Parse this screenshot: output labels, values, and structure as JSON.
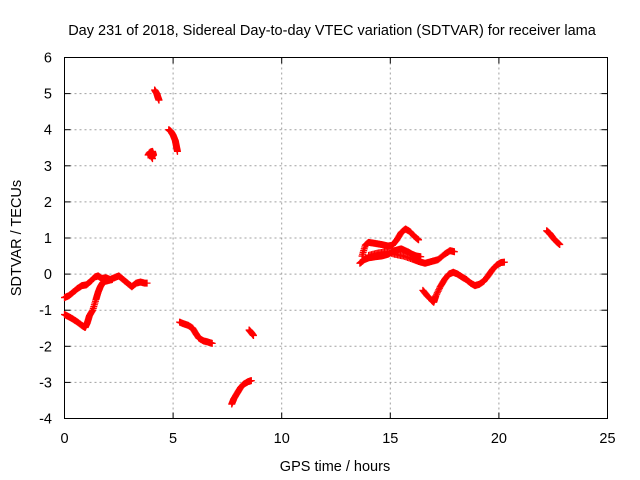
{
  "chart_data": {
    "type": "scatter",
    "title": "Day 231 of 2018, Sidereal Day-to-day VTEC variation (SDTVAR) for receiver lama",
    "xlabel": "GPS time / hours",
    "ylabel": "SDTVAR / TECUs",
    "xlim": [
      0,
      25
    ],
    "ylim": [
      -4,
      6
    ],
    "xticks": [
      "0",
      "5",
      "10",
      "15",
      "20",
      "25"
    ],
    "yticks": [
      "-4",
      "-3",
      "-2",
      "-1",
      "0",
      "1",
      "2",
      "3",
      "4",
      "5",
      "6"
    ],
    "grid": true,
    "marker": "plus",
    "marker_color": "#ff0000",
    "series": [
      {
        "name": "SDTVAR",
        "tracks": [
          [
            [
              0.0,
              -0.65
            ],
            [
              0.2,
              -0.6
            ],
            [
              0.4,
              -0.5
            ],
            [
              0.6,
              -0.4
            ],
            [
              0.8,
              -0.32
            ],
            [
              1.0,
              -0.3
            ],
            [
              1.2,
              -0.2
            ],
            [
              1.4,
              -0.08
            ],
            [
              1.55,
              -0.05
            ],
            [
              1.7,
              -0.12
            ],
            [
              1.9,
              -0.1
            ],
            [
              2.1,
              -0.15
            ],
            [
              2.3,
              -0.1
            ],
            [
              2.5,
              -0.05
            ],
            [
              2.7,
              -0.15
            ],
            [
              2.9,
              -0.25
            ],
            [
              3.1,
              -0.35
            ],
            [
              3.3,
              -0.25
            ],
            [
              3.5,
              -0.22
            ],
            [
              3.7,
              -0.25
            ],
            [
              3.8,
              -0.25
            ]
          ],
          [
            [
              0.0,
              -1.12
            ],
            [
              0.2,
              -1.18
            ],
            [
              0.4,
              -1.25
            ],
            [
              0.6,
              -1.33
            ],
            [
              0.8,
              -1.42
            ],
            [
              0.95,
              -1.48
            ],
            [
              1.05,
              -1.35
            ],
            [
              1.15,
              -1.15
            ],
            [
              1.3,
              -1.0
            ],
            [
              1.45,
              -0.7
            ],
            [
              1.55,
              -0.5
            ],
            [
              1.65,
              -0.35
            ],
            [
              1.75,
              -0.25
            ],
            [
              1.85,
              -0.2
            ],
            [
              2.0,
              -0.18
            ],
            [
              2.2,
              -0.15
            ]
          ],
          [
            [
              3.85,
              3.3
            ],
            [
              3.95,
              3.38
            ],
            [
              4.05,
              3.4
            ],
            [
              4.1,
              3.3
            ],
            [
              4.0,
              3.25
            ],
            [
              3.9,
              3.35
            ],
            [
              4.05,
              3.2
            ]
          ],
          [
            [
              4.15,
              5.1
            ],
            [
              4.25,
              5.0
            ],
            [
              4.3,
              4.9
            ],
            [
              4.35,
              4.82
            ]
          ],
          [
            [
              4.8,
              4.0
            ],
            [
              4.9,
              3.95
            ],
            [
              5.0,
              3.85
            ],
            [
              5.1,
              3.7
            ],
            [
              5.15,
              3.55
            ],
            [
              5.2,
              3.4
            ]
          ],
          [
            [
              5.3,
              -1.33
            ],
            [
              5.5,
              -1.38
            ],
            [
              5.7,
              -1.42
            ],
            [
              5.9,
              -1.5
            ],
            [
              6.05,
              -1.65
            ],
            [
              6.2,
              -1.78
            ],
            [
              6.4,
              -1.85
            ],
            [
              6.6,
              -1.88
            ],
            [
              6.8,
              -1.92
            ]
          ],
          [
            [
              7.7,
              -3.6
            ],
            [
              7.8,
              -3.45
            ],
            [
              7.95,
              -3.3
            ],
            [
              8.1,
              -3.15
            ],
            [
              8.25,
              -3.05
            ],
            [
              8.45,
              -2.98
            ],
            [
              8.6,
              -2.95
            ]
          ],
          [
            [
              8.5,
              -1.55
            ],
            [
              8.6,
              -1.62
            ],
            [
              8.7,
              -1.7
            ]
          ],
          [
            [
              13.6,
              0.3
            ],
            [
              13.8,
              0.4
            ],
            [
              14.0,
              0.45
            ],
            [
              14.3,
              0.48
            ],
            [
              14.6,
              0.5
            ],
            [
              14.9,
              0.55
            ],
            [
              15.2,
              0.65
            ],
            [
              15.5,
              0.7
            ],
            [
              15.8,
              0.62
            ],
            [
              16.0,
              0.55
            ],
            [
              16.2,
              0.5
            ],
            [
              16.4,
              0.48
            ]
          ],
          [
            [
              13.7,
              0.5
            ],
            [
              13.85,
              0.8
            ],
            [
              14.0,
              0.88
            ],
            [
              14.3,
              0.85
            ],
            [
              14.6,
              0.82
            ],
            [
              14.9,
              0.78
            ],
            [
              15.1,
              0.8
            ],
            [
              15.3,
              0.95
            ],
            [
              15.5,
              1.15
            ],
            [
              15.7,
              1.25
            ],
            [
              15.9,
              1.18
            ],
            [
              16.1,
              1.05
            ],
            [
              16.3,
              0.95
            ]
          ],
          [
            [
              14.0,
              0.52
            ],
            [
              14.4,
              0.58
            ],
            [
              14.8,
              0.62
            ],
            [
              15.2,
              0.55
            ],
            [
              15.6,
              0.5
            ],
            [
              16.0,
              0.42
            ],
            [
              16.3,
              0.35
            ],
            [
              16.6,
              0.3
            ],
            [
              16.9,
              0.35
            ],
            [
              17.2,
              0.4
            ],
            [
              17.5,
              0.55
            ],
            [
              17.75,
              0.65
            ],
            [
              17.95,
              0.62
            ]
          ],
          [
            [
              16.5,
              -0.45
            ],
            [
              16.7,
              -0.6
            ],
            [
              16.9,
              -0.72
            ],
            [
              17.0,
              -0.78
            ],
            [
              17.1,
              -0.6
            ],
            [
              17.3,
              -0.35
            ],
            [
              17.5,
              -0.15
            ],
            [
              17.7,
              0.0
            ],
            [
              17.9,
              0.05
            ],
            [
              18.1,
              0.0
            ],
            [
              18.3,
              -0.08
            ],
            [
              18.5,
              -0.15
            ],
            [
              18.7,
              -0.25
            ],
            [
              18.9,
              -0.32
            ],
            [
              19.1,
              -0.28
            ],
            [
              19.3,
              -0.2
            ],
            [
              19.5,
              -0.05
            ],
            [
              19.7,
              0.12
            ],
            [
              19.9,
              0.25
            ],
            [
              20.1,
              0.32
            ],
            [
              20.25,
              0.33
            ]
          ],
          [
            [
              22.2,
              1.2
            ],
            [
              22.35,
              1.12
            ],
            [
              22.5,
              1.0
            ],
            [
              22.65,
              0.9
            ],
            [
              22.8,
              0.82
            ]
          ]
        ]
      }
    ]
  }
}
